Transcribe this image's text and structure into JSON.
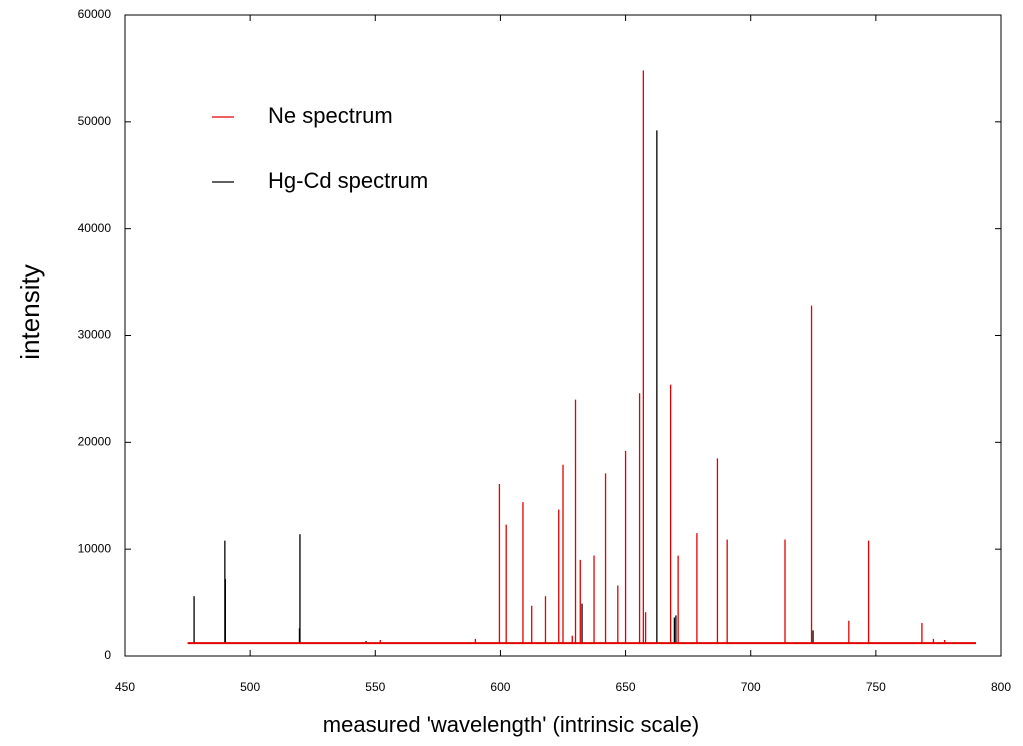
{
  "chart_data": {
    "type": "spectrum",
    "x_label": "measured 'wavelength' (intrinsic scale)",
    "y_label": "intensity",
    "xlim": [
      450,
      800
    ],
    "ylim": [
      0,
      60000
    ],
    "xticks": [
      450,
      500,
      550,
      600,
      650,
      700,
      750,
      800
    ],
    "yticks": [
      0,
      10000,
      20000,
      30000,
      40000,
      50000,
      60000
    ],
    "baseline": 1200,
    "baseline_range": [
      475,
      790
    ],
    "legend": "upper-left",
    "series": [
      {
        "name": "Ne spectrum",
        "color": "#e00000",
        "x": [
          552,
          590,
          599.6,
          602.3,
          609,
          612.5,
          618,
          623.3,
          625,
          628.7,
          630,
          631.9,
          637.4,
          642,
          646.9,
          650,
          655.6,
          657.1,
          658,
          668,
          671,
          678.5,
          686.7,
          690.6,
          713.7,
          724.3,
          739.2,
          747.1,
          768.4,
          773,
          777.5
        ],
        "values": [
          1500,
          1600,
          16100,
          12300,
          14400,
          4700,
          5600,
          13700,
          17900,
          1900,
          24000,
          9000,
          9400,
          17100,
          6600,
          19200,
          24600,
          54800,
          4100,
          25400,
          9400,
          11500,
          18500,
          10900,
          10900,
          32800,
          3300,
          10800,
          3100,
          1600,
          1500
        ]
      },
      {
        "name": "Hg-Cd spectrum",
        "color": "#000000",
        "x": [
          477.6,
          489.9,
          490.1,
          519.7,
          519.9,
          546.3,
          632.6,
          662.5,
          669.5,
          670.1,
          724.9
        ],
        "values": [
          5600,
          10800,
          7200,
          2600,
          11400,
          1400,
          4900,
          49200,
          3600,
          3800,
          2400
        ]
      }
    ]
  }
}
